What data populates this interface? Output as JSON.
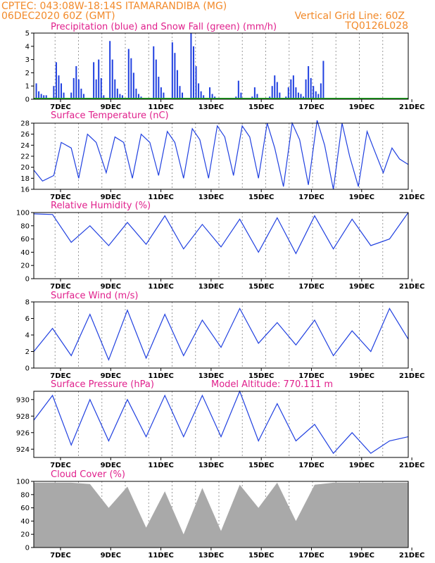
{
  "header": {
    "left_line1": "CPTEC:  043:08W-18:14S  ITAMARANDIBA (MG)",
    "left_line2": "06DEC2020 60Z (GMT)",
    "right_line1": "Vertical Grid Line: 60Z",
    "right_line2": "TQ0126L028"
  },
  "x_days": [
    "7DEC",
    "9DEC",
    "11DEC",
    "13DEC",
    "15DEC",
    "17DEC",
    "19DEC",
    "21DEC"
  ],
  "colors": {
    "header": "#f28a2a",
    "title": "#e0208c",
    "line": "#2040e0",
    "cloud": "#a9a9a9",
    "snow": "#22aa22"
  },
  "chart_data": [
    {
      "id": "precip",
      "type": "bar",
      "title": "Precipitation (blue) and Snow Fall (green) (mm/h)",
      "ylim": [
        0,
        5
      ],
      "yticks": [
        0,
        1,
        2,
        3,
        4,
        5
      ],
      "x": [
        0.2,
        0.4,
        0.6,
        0.8,
        1.0,
        1.6,
        1.8,
        2.0,
        2.2,
        2.4,
        3.0,
        3.2,
        3.4,
        3.6,
        3.8,
        4.0,
        4.8,
        5.0,
        5.2,
        5.4,
        5.6,
        6.1,
        6.3,
        6.5,
        6.7,
        6.9,
        7.1,
        7.6,
        7.8,
        8.0,
        8.2,
        8.4,
        8.6,
        8.8,
        9.6,
        9.8,
        10.0,
        10.2,
        10.4,
        11.1,
        11.3,
        11.5,
        11.7,
        11.9,
        12.6,
        12.8,
        13.0,
        13.2,
        13.4,
        13.6,
        14.1,
        14.3,
        14.5,
        16.2,
        16.4,
        16.6,
        17.5,
        17.7,
        17.9,
        18.9,
        19.1,
        19.3,
        19.5,
        19.7,
        20.2,
        20.4,
        20.6,
        20.8,
        21.0,
        21.2,
        21.4,
        21.6,
        21.8,
        22.0,
        22.2,
        22.4,
        22.6,
        22.8,
        23.0,
        23.2
      ],
      "values": [
        1.2,
        0.6,
        0.4,
        0.3,
        0.3,
        1.0,
        2.8,
        1.8,
        1.2,
        0.5,
        0.5,
        1.6,
        2.5,
        1.5,
        0.8,
        0.4,
        2.8,
        1.5,
        3.0,
        1.6,
        0.3,
        4.4,
        3.0,
        1.5,
        0.8,
        0.4,
        0.3,
        3.8,
        3.1,
        2.0,
        0.8,
        0.4,
        0.2,
        0.1,
        4.0,
        3.0,
        1.7,
        0.9,
        0.5,
        4.3,
        3.5,
        2.2,
        1.0,
        0.5,
        5.0,
        4.0,
        2.5,
        1.2,
        0.6,
        0.3,
        0.9,
        0.4,
        0.2,
        0.2,
        1.4,
        0.5,
        0.2,
        0.9,
        0.4,
        0.2,
        1.0,
        1.8,
        1.3,
        0.5,
        0.2,
        0.9,
        1.5,
        1.8,
        0.9,
        0.5,
        0.4,
        0.2,
        1.5,
        2.5,
        1.6,
        1.0,
        0.6,
        0.4,
        1.2,
        2.9
      ],
      "snow": [
        0,
        0,
        0,
        0,
        0,
        0,
        0,
        0,
        0,
        0,
        0,
        0,
        0,
        0,
        0,
        0,
        0,
        0,
        0,
        0,
        0,
        0,
        0,
        0,
        0,
        0,
        0,
        0,
        0,
        0,
        0,
        0,
        0,
        0,
        0,
        0,
        0,
        0,
        0,
        0,
        0,
        0,
        0,
        0,
        0,
        0,
        0,
        0,
        0,
        0,
        0,
        0,
        0,
        0,
        0,
        0,
        0,
        0,
        0,
        0,
        0,
        0,
        0,
        0,
        0,
        0,
        0,
        0,
        0,
        0,
        0,
        0,
        0,
        0,
        0,
        0,
        0,
        0,
        0,
        0
      ]
    },
    {
      "id": "temp",
      "type": "line",
      "title": "Surface Temperature (nC)",
      "ylim": [
        16,
        28
      ],
      "yticks": [
        16,
        18,
        20,
        22,
        24,
        26,
        28
      ],
      "x": [
        0,
        0.7,
        1.6,
        2.2,
        3.0,
        3.6,
        4.3,
        5.0,
        5.8,
        6.5,
        7.2,
        7.9,
        8.6,
        9.3,
        10.0,
        10.7,
        11.3,
        12.0,
        12.7,
        13.3,
        14.0,
        14.7,
        15.3,
        16.0,
        16.7,
        17.3,
        18.0,
        18.7,
        19.3,
        20.0,
        20.7,
        21.3,
        22.0,
        22.7,
        23.3,
        24.0,
        24.7,
        25.3,
        26.0,
        26.7,
        27.3,
        28.0,
        28.7,
        29.3,
        30.0
      ],
      "values": [
        19.5,
        17.5,
        18.5,
        24.5,
        23.5,
        18.0,
        26.0,
        24.5,
        19.0,
        25.5,
        24.5,
        18.0,
        26.0,
        24.5,
        18.5,
        26.5,
        24.5,
        18.0,
        27.0,
        25.0,
        18.0,
        27.5,
        25.5,
        18.5,
        27.5,
        25.5,
        18.0,
        28.0,
        23.5,
        16.5,
        28.0,
        25.0,
        16.8,
        28.5,
        24.0,
        16.0,
        28.0,
        22.0,
        16.5,
        26.5,
        23.0,
        19.0,
        23.5,
        21.5,
        20.5
      ]
    },
    {
      "id": "rh",
      "type": "line",
      "title": "Relative Humidity (%)",
      "ylim": [
        0,
        100
      ],
      "yticks": [
        0,
        20,
        40,
        60,
        80,
        100
      ],
      "x": [
        0,
        1.5,
        3,
        4.5,
        6,
        7.5,
        9,
        10.5,
        12,
        13.5,
        15,
        16.5,
        18,
        19.5,
        21,
        22.5,
        24,
        25.5,
        27,
        28.5,
        30
      ],
      "values": [
        98,
        97,
        55,
        80,
        50,
        85,
        52,
        95,
        45,
        82,
        48,
        90,
        40,
        92,
        38,
        95,
        45,
        90,
        50,
        60,
        100
      ]
    },
    {
      "id": "wind",
      "type": "line",
      "title": "Surface Wind (m/s)",
      "ylim": [
        0,
        8
      ],
      "yticks": [
        0,
        2,
        4,
        6,
        8
      ],
      "x": [
        0,
        1.5,
        3,
        4.5,
        6,
        7.5,
        9,
        10.5,
        12,
        13.5,
        15,
        16.5,
        18,
        19.5,
        21,
        22.5,
        24,
        25.5,
        27,
        28.5,
        30
      ],
      "values": [
        2,
        4.8,
        1.5,
        6.5,
        1.0,
        7.0,
        1.2,
        6.5,
        1.5,
        5.8,
        2.5,
        7.2,
        3.0,
        5.5,
        2.8,
        5.8,
        1.5,
        4.5,
        2.0,
        7.2,
        3.5
      ]
    },
    {
      "id": "press",
      "type": "line",
      "title": "Surface Pressure (hPa)",
      "extra_label": "Model Altitude: 770.111 m",
      "ylim": [
        923,
        931
      ],
      "yticks": [
        924,
        926,
        928,
        930
      ],
      "x": [
        0,
        1.5,
        3,
        4.5,
        6,
        7.5,
        9,
        10.5,
        12,
        13.5,
        15,
        16.5,
        18,
        19.5,
        21,
        22.5,
        24,
        25.5,
        27,
        28.5,
        30
      ],
      "values": [
        927.5,
        930.5,
        924.5,
        930.0,
        925.0,
        930.0,
        925.5,
        930.5,
        925.5,
        930.5,
        925.5,
        931.0,
        925.0,
        929.5,
        925.0,
        927.0,
        923.5,
        926.0,
        923.5,
        925.0,
        925.5
      ]
    },
    {
      "id": "cloud",
      "type": "area",
      "title": "Cloud Cover (%)",
      "ylim": [
        0,
        100
      ],
      "yticks": [
        0,
        20,
        40,
        60,
        80,
        100
      ],
      "x": [
        0,
        1.5,
        3,
        4.5,
        6,
        7.5,
        9,
        10.5,
        12,
        13.5,
        15,
        16.5,
        18,
        19.5,
        21,
        22.5,
        24,
        25.5,
        27,
        28.5,
        30
      ],
      "values": [
        98,
        98,
        98,
        96,
        60,
        92,
        30,
        85,
        20,
        90,
        25,
        95,
        60,
        98,
        40,
        95,
        98,
        98,
        98,
        98,
        98
      ]
    }
  ]
}
